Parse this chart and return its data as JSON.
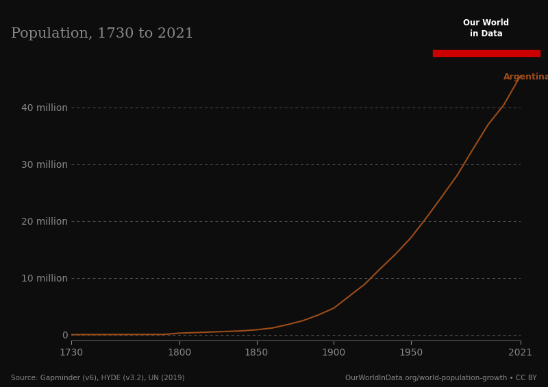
{
  "title": "Population, 1730 to 2021",
  "line_color": "#9E4D1A",
  "background_color": "#0d0d0d",
  "text_color": "#888888",
  "grid_color": "#555555",
  "axis_color": "#555555",
  "label_color": "#9E4D1A",
  "ylabel_ticks": [
    0,
    10000000,
    20000000,
    30000000,
    40000000
  ],
  "ylabel_labels": [
    "0",
    "10 million",
    "20 million",
    "30 million",
    "40 million"
  ],
  "xlim": [
    1730,
    2021
  ],
  "ylim": [
    -1000000,
    48000000
  ],
  "xticks": [
    1730,
    1800,
    1850,
    1900,
    1950,
    2021
  ],
  "source_text": "Source: Gapminder (v6), HYDE (v3.2), UN (2019)",
  "owid_text": "OurWorldInData.org/world-population-growth • CC BY",
  "legend_label": "Argentina",
  "owid_logo_bg": "#003366",
  "owid_logo_text": "Our World\nin Data",
  "owid_logo_red": "#cc0000",
  "years": [
    1730,
    1740,
    1750,
    1760,
    1770,
    1780,
    1790,
    1800,
    1810,
    1820,
    1830,
    1840,
    1850,
    1860,
    1870,
    1880,
    1890,
    1900,
    1910,
    1920,
    1930,
    1940,
    1950,
    1960,
    1970,
    1980,
    1990,
    2000,
    2010,
    2021
  ],
  "population": [
    50000,
    55000,
    60000,
    65000,
    70000,
    75000,
    80000,
    300000,
    400000,
    500000,
    600000,
    700000,
    900000,
    1200000,
    1800000,
    2500000,
    3500000,
    4700000,
    6800000,
    8900000,
    11600000,
    14200000,
    17100000,
    20600000,
    24300000,
    28100000,
    32600000,
    37000000,
    40400000,
    45600000
  ]
}
